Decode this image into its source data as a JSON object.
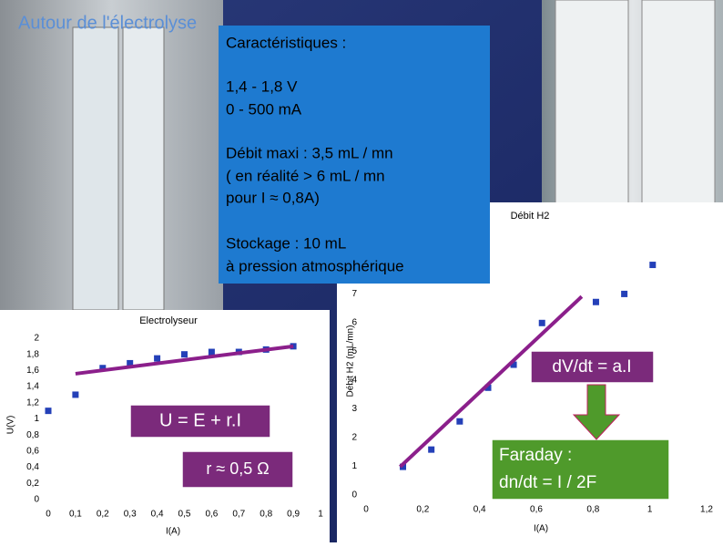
{
  "slide": {
    "title": "Autour de l'électrolyse",
    "textbox": [
      "Caractéristiques :",
      "1,4 - 1,8 V",
      "0 - 500 mA",
      "Débit maxi : 3,5 mL / mn",
      "( en réalité > 6 mL / mn",
      "pour I ≈ 0,8A)",
      "Stockage : 10 mL",
      "à pression atmosphérique"
    ]
  },
  "chart_data": [
    {
      "type": "scatter",
      "title": "Electrolyseur",
      "x_label": "I(A)",
      "y_label": "U(V)",
      "x": [
        0,
        0.1,
        0.2,
        0.3,
        0.4,
        0.5,
        0.6,
        0.7,
        0.8,
        0.9
      ],
      "values": [
        1.1,
        1.3,
        1.63,
        1.69,
        1.75,
        1.8,
        1.83,
        1.83,
        1.86,
        1.9
      ],
      "color": "#2440b8",
      "trendline": {
        "x": [
          0.1,
          0.9
        ],
        "y": [
          1.56,
          1.9
        ],
        "color": "#8b1f8b"
      },
      "xlim": [
        0,
        1
      ],
      "ylim": [
        0,
        2
      ],
      "xticks": [
        0,
        {
          "value": 0.1,
          "label": "0,1"
        },
        {
          "value": 0.2,
          "label": "0,2"
        },
        {
          "value": 0.3,
          "label": "0,3"
        },
        {
          "value": 0.4,
          "label": "0,4"
        },
        {
          "value": 0.5,
          "label": "0,5"
        },
        {
          "value": 0.6,
          "label": "0,6"
        },
        {
          "value": 0.7,
          "label": "0,7"
        },
        {
          "value": 0.8,
          "label": "0,8"
        },
        {
          "value": 0.9,
          "label": "0,9"
        },
        1
      ],
      "yticks": [
        0,
        {
          "value": 0.2,
          "label": "0,2"
        },
        {
          "value": 0.4,
          "label": "0,4"
        },
        {
          "value": 0.6,
          "label": "0,6"
        },
        {
          "value": 0.8,
          "label": "0,8"
        },
        1,
        {
          "value": 1.2,
          "label": "1,2"
        },
        {
          "value": 1.4,
          "label": "1,4"
        },
        {
          "value": 1.6,
          "label": "1,6"
        },
        {
          "value": 1.8,
          "label": "1,8"
        },
        2
      ],
      "annotations": [
        "U = E + r.I",
        "r ≈ 0,5 Ω"
      ]
    },
    {
      "type": "scatter",
      "title": "Débit H2",
      "x_label": "I(A)",
      "y_label": "Débit H2 (mL/mn)",
      "x": [
        0.13,
        0.23,
        0.33,
        0.43,
        0.52,
        0.62,
        0.81,
        0.91,
        1.01
      ],
      "values": [
        0.98,
        1.58,
        2.56,
        3.73,
        4.53,
        5.98,
        6.71,
        6.99,
        8.0
      ],
      "color": "#2440b8",
      "trendline": {
        "x": [
          0.12,
          0.76
        ],
        "y": [
          0.98,
          6.9
        ],
        "color": "#8b1f8b"
      },
      "xlim": [
        0,
        1.2
      ],
      "ylim": [
        0,
        9
      ],
      "xticks": [
        0,
        {
          "value": 0.2,
          "label": "0,2"
        },
        {
          "value": 0.4,
          "label": "0,4"
        },
        {
          "value": 0.6,
          "label": "0,6"
        },
        {
          "value": 0.8,
          "label": "0,8"
        },
        1,
        {
          "value": 1.2,
          "label": "1,2"
        }
      ],
      "yticks": [
        0,
        1,
        2,
        3,
        4,
        5,
        6,
        7
      ],
      "annotations": [
        "dV/dt = a.I",
        "Faraday :",
        "dn/dt = I / 2F"
      ]
    }
  ]
}
